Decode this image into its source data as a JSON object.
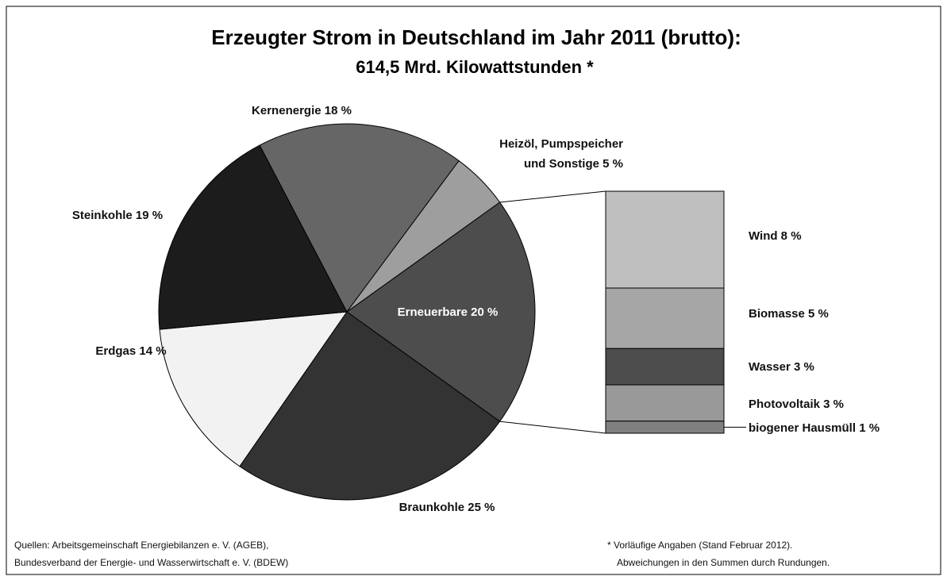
{
  "chart_data": {
    "type": "pie",
    "title": [
      "Erzeugter Strom in Deutschland im Jahr 2011 (brutto):",
      "614,5 Mrd. Kilowattstunden *"
    ],
    "values": [
      20,
      25,
      14,
      19,
      18,
      5
    ],
    "value_labels": [
      [
        "Erneuerbare 20 %"
      ],
      [
        "Braunkohle 25 %"
      ],
      [
        "Erdgas 14 %"
      ],
      [
        "Steinkohle 19 %"
      ],
      [
        "Kernenergie 18 %"
      ],
      [
        "Heizöl, Pumpspeicher",
        "und Sonstige 5 %"
      ]
    ],
    "colors": [
      "#4d4d4d",
      "#333333",
      "#f2f2f2",
      "#1c1c1c",
      "#666666",
      "#9e9e9e"
    ],
    "breakdown": {
      "values": [
        8,
        5,
        3,
        3,
        1
      ],
      "value_labels": [
        "Wind 8 %",
        "Biomasse 5 %",
        "Wasser 3 %",
        "Photovoltaik 3 %",
        "biogener Hausmüll 1 %"
      ],
      "colors": [
        "#bfbfbf",
        "#a6a6a6",
        "#4d4d4d",
        "#999999",
        "#808080"
      ]
    }
  },
  "notes": {
    "sources": [
      "Quellen: Arbeitsgemeinschaft Energiebilanzen e. V. (AGEB),",
      "Bundesverband der Energie- und Wasserwirtschaft e. V. (BDEW)"
    ],
    "footnote": [
      "* Vorläufige Angaben (Stand Februar 2012).",
      "Abweichungen in den Summen durch Rundungen."
    ]
  }
}
